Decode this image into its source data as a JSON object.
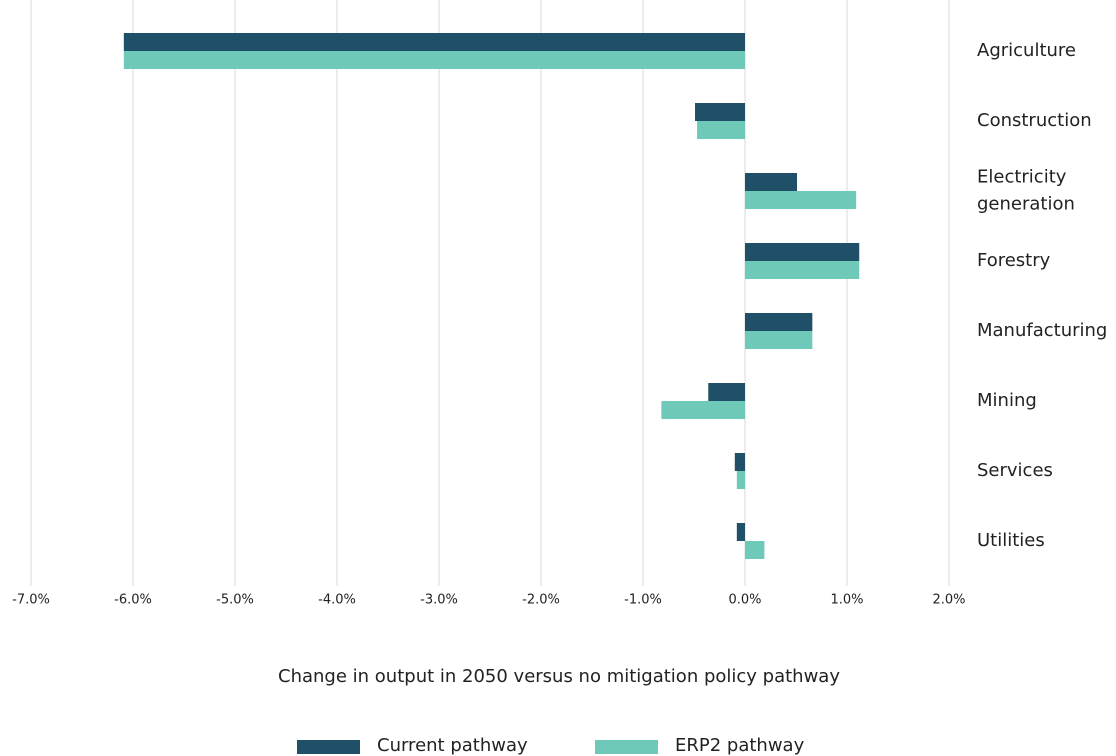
{
  "chart_data": {
    "type": "hbar",
    "x_label": "Change in output in 2050 versus no mitigation policy pathway",
    "categories": [
      "Agriculture",
      "Construction",
      "Electricity generation",
      "Forestry",
      "Manufacturing",
      "Mining",
      "Services",
      "Utilities"
    ],
    "series": [
      {
        "name": "Current pathway",
        "color": "#1f5068",
        "values": [
          -6.09,
          -0.49,
          0.51,
          1.12,
          0.66,
          -0.36,
          -0.1,
          -0.08
        ]
      },
      {
        "name": "ERP2 pathway",
        "color": "#6ec9b8",
        "values": [
          -6.09,
          -0.47,
          1.09,
          1.12,
          0.66,
          -0.82,
          -0.08,
          0.19
        ]
      }
    ],
    "xlim": [
      -7,
      2
    ],
    "xticks": [
      {
        "value": -7,
        "label": "-7.0%"
      },
      {
        "value": -6,
        "label": "-6.0%"
      },
      {
        "value": -5,
        "label": "-5.0%"
      },
      {
        "value": -4,
        "label": "-4.0%"
      },
      {
        "value": -3,
        "label": "-3.0%"
      },
      {
        "value": -2,
        "label": "-2.0%"
      },
      {
        "value": -1,
        "label": "-1.0%"
      },
      {
        "value": 0,
        "label": "0.0%"
      },
      {
        "value": 1,
        "label": "1.0%"
      },
      {
        "value": 2,
        "label": "2.0%"
      }
    ],
    "grid": true,
    "legend": "bottom"
  }
}
